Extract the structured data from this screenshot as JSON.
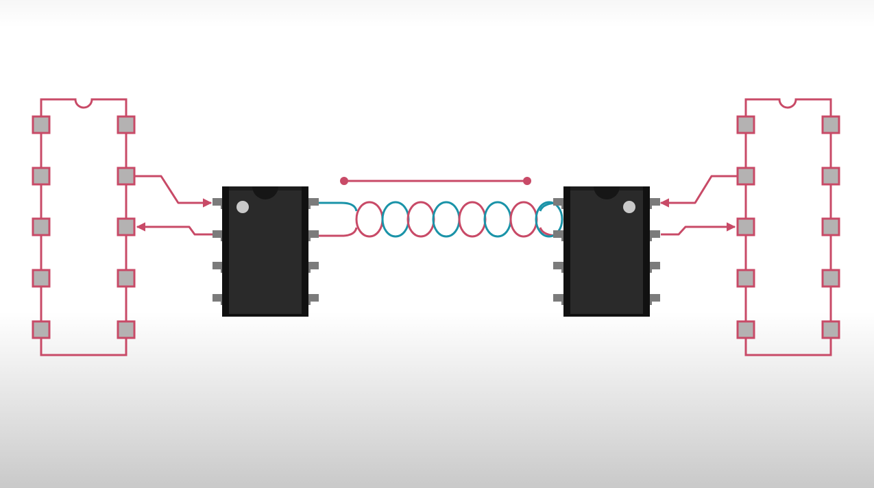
{
  "diagram": {
    "colors": {
      "outline": "#c84a67",
      "pad_fill": "#b4b2b2",
      "chip_body": "#2a2a2a",
      "chip_edge": "#111111",
      "chip_pin": "#7b7b7b",
      "pin1_dot": "#c9c9c9",
      "wire_a": "#c84a67",
      "wire_b": "#1a93a8"
    },
    "left_ic_footprint": {
      "pins_per_side": 5
    },
    "right_ic_footprint": {
      "pins_per_side": 5
    },
    "left_chip": {
      "pins_per_side": 4
    },
    "right_chip": {
      "pins_per_side": 4
    },
    "twisted_pair": {
      "twists": 8
    },
    "range_marker": {
      "style": "line with dot endpoints"
    },
    "signal_arrows": [
      {
        "from": "left-footprint-pin-2-right",
        "to": "left-chip-pin-1",
        "direction": "to-chip"
      },
      {
        "from": "left-chip-pin-2",
        "to": "left-footprint-pin-3-right",
        "direction": "to-footprint"
      },
      {
        "from": "right-footprint-pin-2-left",
        "to": "right-chip-pin-1",
        "direction": "to-chip"
      },
      {
        "from": "right-chip-pin-2",
        "to": "right-footprint-pin-3-left",
        "direction": "to-footprint"
      }
    ]
  }
}
